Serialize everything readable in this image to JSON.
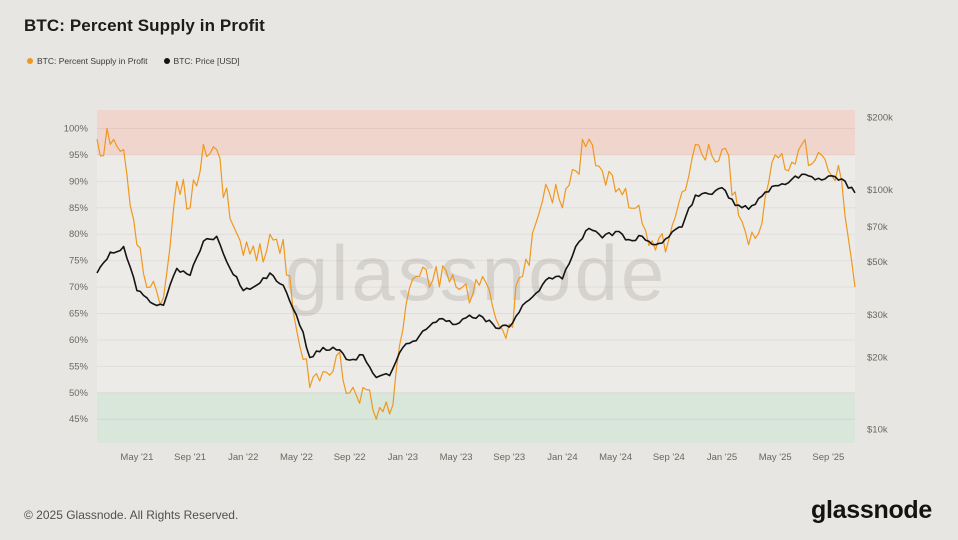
{
  "page": {
    "title": "BTC: Percent Supply in Profit",
    "watermark": "glassnode",
    "footer": {
      "copyright": "© 2025 Glassnode. All Rights Reserved.",
      "brand": "glassnode"
    }
  },
  "legend": [
    {
      "label": "BTC: Percent Supply in Profit",
      "color": "#ef9820"
    },
    {
      "label": "BTC: Price [USD]",
      "color": "#141414"
    }
  ],
  "chart_data": {
    "type": "line",
    "title": "BTC: Percent Supply in Profit",
    "grid": true,
    "legend_position": "top-left",
    "colors": {
      "page_bg": "#e8e6e2",
      "plot_bg": "#edebe7",
      "band_top_red": "#f0d5cd",
      "band_bottom_green": "#d9e6da",
      "grid": "rgba(0,0,0,0.055)",
      "axis_text": "#6b6761",
      "watermark": "rgba(60,55,48,0.13)",
      "orange": "#ef9820",
      "black": "#141414"
    },
    "x_months": [
      "2021-02",
      "2021-03",
      "2021-04",
      "2021-05",
      "2021-06",
      "2021-07",
      "2021-08",
      "2021-09",
      "2021-10",
      "2021-11",
      "2021-12",
      "2022-01",
      "2022-02",
      "2022-03",
      "2022-04",
      "2022-05",
      "2022-06",
      "2022-07",
      "2022-08",
      "2022-09",
      "2022-10",
      "2022-11",
      "2022-12",
      "2023-01",
      "2023-02",
      "2023-03",
      "2023-04",
      "2023-05",
      "2023-06",
      "2023-07",
      "2023-08",
      "2023-09",
      "2023-10",
      "2023-11",
      "2023-12",
      "2024-01",
      "2024-02",
      "2024-03",
      "2024-04",
      "2024-05",
      "2024-06",
      "2024-07",
      "2024-08",
      "2024-09",
      "2024-10",
      "2024-11",
      "2024-12",
      "2025-01",
      "2025-02",
      "2025-03",
      "2025-04",
      "2025-05",
      "2025-06",
      "2025-07",
      "2025-08",
      "2025-09",
      "2025-10",
      "2025-11"
    ],
    "x_ticks": [
      3,
      7,
      11,
      15,
      19,
      23,
      27,
      31,
      35,
      39,
      43,
      47,
      51,
      55
    ],
    "x_tick_labels": [
      "May '21",
      "Sep '21",
      "Jan '22",
      "May '22",
      "Sep '22",
      "Jan '23",
      "May '23",
      "Sep '23",
      "Jan '24",
      "May '24",
      "Sep '24",
      "Jan '25",
      "May '25",
      "Sep '25"
    ],
    "left_axis": {
      "label": "Percent Supply in Profit",
      "unit": "%",
      "range": [
        40.5,
        103.5
      ],
      "ticks": [
        100,
        95,
        90,
        85,
        80,
        75,
        70,
        65,
        60,
        55,
        50,
        45
      ]
    },
    "right_axis": {
      "label": "BTC: Price [USD]",
      "scale": "log",
      "range": [
        8800,
        215000
      ],
      "ticks": [
        {
          "value": 200000,
          "label": "$200k"
        },
        {
          "value": 100000,
          "label": "$100k"
        },
        {
          "value": 70000,
          "label": "$70k"
        },
        {
          "value": 50000,
          "label": "$50k"
        },
        {
          "value": 30000,
          "label": "$30k"
        },
        {
          "value": 20000,
          "label": "$20k"
        },
        {
          "value": 10000,
          "label": "$10k"
        }
      ]
    },
    "bands": [
      {
        "name": "overheated-band",
        "axis": "left",
        "from": 95,
        "to": 103.5,
        "color": "#f0d5cd"
      },
      {
        "name": "capitulation-band",
        "axis": "left",
        "from": 40.5,
        "to": 50,
        "color": "#d9e6da"
      }
    ],
    "series": [
      {
        "name": "BTC: Percent Supply in Profit",
        "axis": "left",
        "color": "#ef9820",
        "width": 1.2,
        "values": [
          98,
          97,
          96,
          78,
          70,
          68,
          90,
          85,
          97,
          96,
          83,
          76,
          75,
          80,
          79,
          62,
          51,
          54,
          57,
          50,
          51,
          45,
          46,
          62,
          72,
          70,
          74,
          70,
          67,
          72,
          64,
          63,
          72,
          82,
          88,
          85,
          92,
          98,
          92,
          88,
          85,
          82,
          77,
          79,
          88,
          97,
          97,
          96,
          88,
          78,
          82,
          95,
          92,
          97,
          94,
          92,
          90,
          70
        ]
      },
      {
        "name": "BTC: Price [USD]",
        "axis": "right",
        "color": "#141414",
        "width": 1.6,
        "values": [
          45000,
          55000,
          58000,
          38000,
          34000,
          33000,
          47000,
          44000,
          61000,
          64000,
          47000,
          38000,
          40000,
          45000,
          40000,
          30000,
          20000,
          22000,
          21500,
          19500,
          20500,
          16500,
          16800,
          22000,
          23500,
          27000,
          29000,
          27500,
          30000,
          29500,
          26500,
          26800,
          33000,
          37000,
          43000,
          42500,
          58000,
          69000,
          63000,
          67000,
          62000,
          64000,
          59000,
          63500,
          70000,
          95000,
          96000,
          102000,
          86000,
          83000,
          94000,
          104000,
          107000,
          116000,
          110000,
          114000,
          111000,
          97000
        ]
      }
    ]
  }
}
